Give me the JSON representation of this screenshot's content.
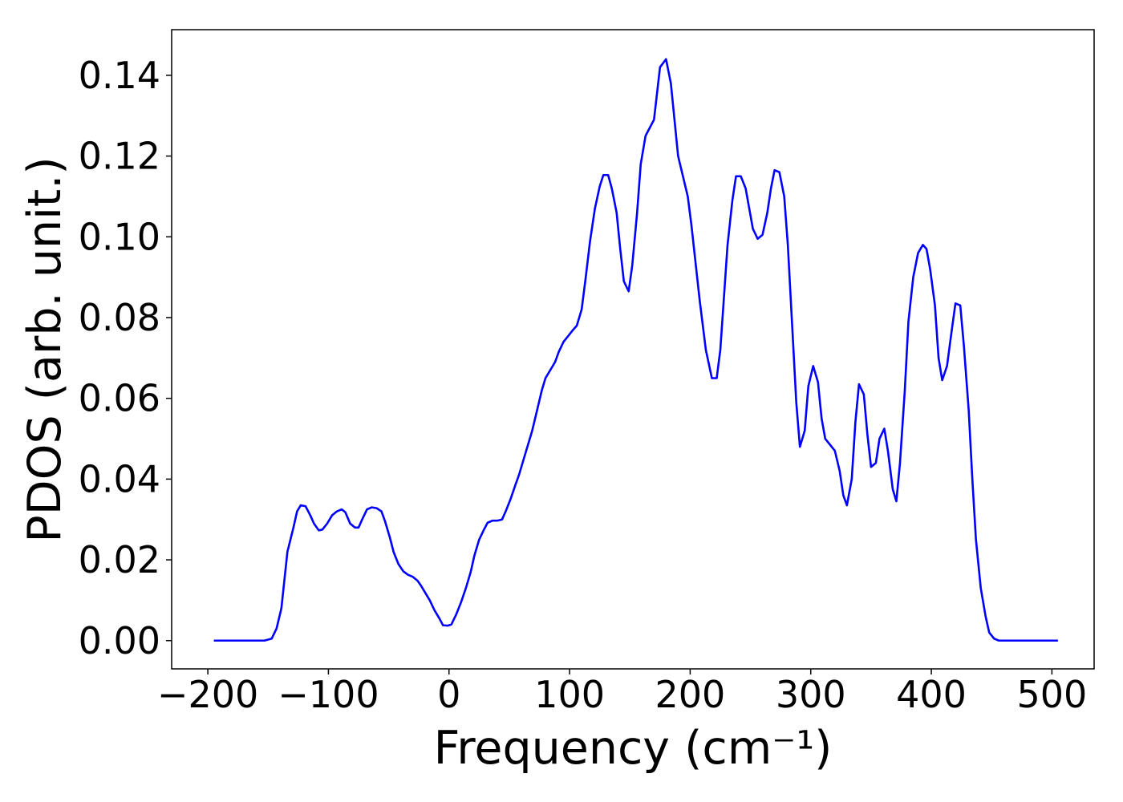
{
  "chart_data": {
    "type": "line",
    "xlabel": "Frequency (cm⁻¹)",
    "ylabel": "PDOS (arb. unit.)",
    "x": [
      -195,
      -153,
      -147,
      -143,
      -139,
      -134,
      -129,
      -126,
      -123,
      -119,
      -115,
      -112,
      -108,
      -105,
      -101,
      -97,
      -93,
      -89,
      -86,
      -82,
      -78,
      -75,
      -72,
      -68,
      -64,
      -60,
      -56,
      -53,
      -49,
      -46,
      -42,
      -38,
      -34,
      -30,
      -26,
      -23,
      -20,
      -16,
      -12,
      -8,
      -5,
      -1,
      2,
      6,
      10,
      14,
      18,
      21,
      25,
      29,
      32,
      36,
      40,
      44,
      47,
      51,
      55,
      58,
      62,
      65,
      69,
      73,
      77,
      80,
      84,
      88,
      91,
      95,
      99,
      103,
      106,
      110,
      113,
      117,
      121,
      125,
      128,
      132,
      135,
      139,
      142,
      145,
      149,
      152,
      156,
      159,
      163,
      170,
      175,
      180,
      184,
      190,
      198,
      201,
      208,
      213,
      218,
      222,
      225,
      231,
      235,
      238,
      242,
      246,
      252,
      256,
      260,
      264,
      267,
      270,
      274,
      278,
      281,
      288,
      291,
      295,
      298,
      302,
      306,
      309,
      312,
      320,
      324,
      327,
      330,
      334,
      337,
      340,
      344,
      347,
      350,
      354,
      357,
      361,
      364,
      368,
      371,
      374,
      378,
      381,
      385,
      389,
      393,
      396,
      399,
      403,
      406,
      409,
      413,
      417,
      420,
      424,
      427,
      431,
      434,
      437,
      441,
      445,
      448,
      452,
      456,
      505
    ],
    "series": [
      {
        "name": "PDOS",
        "color": "#0000ff",
        "values": [
          0,
          0,
          0.0005,
          0.003,
          0.008,
          0.022,
          0.028,
          0.032,
          0.0335,
          0.0333,
          0.031,
          0.029,
          0.0273,
          0.0275,
          0.029,
          0.031,
          0.032,
          0.0325,
          0.0318,
          0.029,
          0.028,
          0.028,
          0.03,
          0.0325,
          0.033,
          0.0328,
          0.032,
          0.0295,
          0.0255,
          0.022,
          0.019,
          0.0172,
          0.0163,
          0.0158,
          0.0148,
          0.0135,
          0.012,
          0.01,
          0.0075,
          0.0055,
          0.0038,
          0.0037,
          0.004,
          0.0065,
          0.0095,
          0.013,
          0.017,
          0.021,
          0.025,
          0.0275,
          0.0292,
          0.0297,
          0.0297,
          0.03,
          0.032,
          0.035,
          0.0385,
          0.041,
          0.045,
          0.048,
          0.052,
          0.057,
          0.062,
          0.065,
          0.067,
          0.069,
          0.0715,
          0.074,
          0.0755,
          0.077,
          0.078,
          0.082,
          0.089,
          0.099,
          0.107,
          0.1125,
          0.1153,
          0.1153,
          0.112,
          0.106,
          0.097,
          0.089,
          0.0865,
          0.093,
          0.106,
          0.118,
          0.125,
          0.129,
          0.142,
          0.144,
          0.138,
          0.12,
          0.11,
          0.103,
          0.084,
          0.072,
          0.065,
          0.065,
          0.072,
          0.098,
          0.109,
          0.115,
          0.115,
          0.112,
          0.102,
          0.0995,
          0.1005,
          0.106,
          0.112,
          0.1165,
          0.116,
          0.11,
          0.098,
          0.059,
          0.048,
          0.052,
          0.063,
          0.068,
          0.064,
          0.055,
          0.05,
          0.047,
          0.042,
          0.036,
          0.0335,
          0.04,
          0.054,
          0.0635,
          0.061,
          0.051,
          0.043,
          0.044,
          0.05,
          0.0525,
          0.047,
          0.0375,
          0.0345,
          0.044,
          0.062,
          0.079,
          0.09,
          0.096,
          0.098,
          0.097,
          0.092,
          0.083,
          0.07,
          0.0645,
          0.068,
          0.077,
          0.0835,
          0.083,
          0.073,
          0.057,
          0.04,
          0.025,
          0.013,
          0.006,
          0.002,
          0.0005,
          0,
          0
        ]
      }
    ],
    "xlim": [
      -230,
      535
    ],
    "ylim": [
      -0.007,
      0.1513
    ],
    "xticks": [
      {
        "value": -200,
        "label": "−200"
      },
      {
        "value": -100,
        "label": "−100"
      },
      0,
      100,
      200,
      300,
      400,
      500
    ],
    "yticks": [
      {
        "value": 0,
        "label": "0.00"
      },
      0.02,
      0.04,
      0.06,
      0.08,
      {
        "value": 0.1,
        "label": "0.10"
      },
      0.12,
      0.14
    ]
  }
}
